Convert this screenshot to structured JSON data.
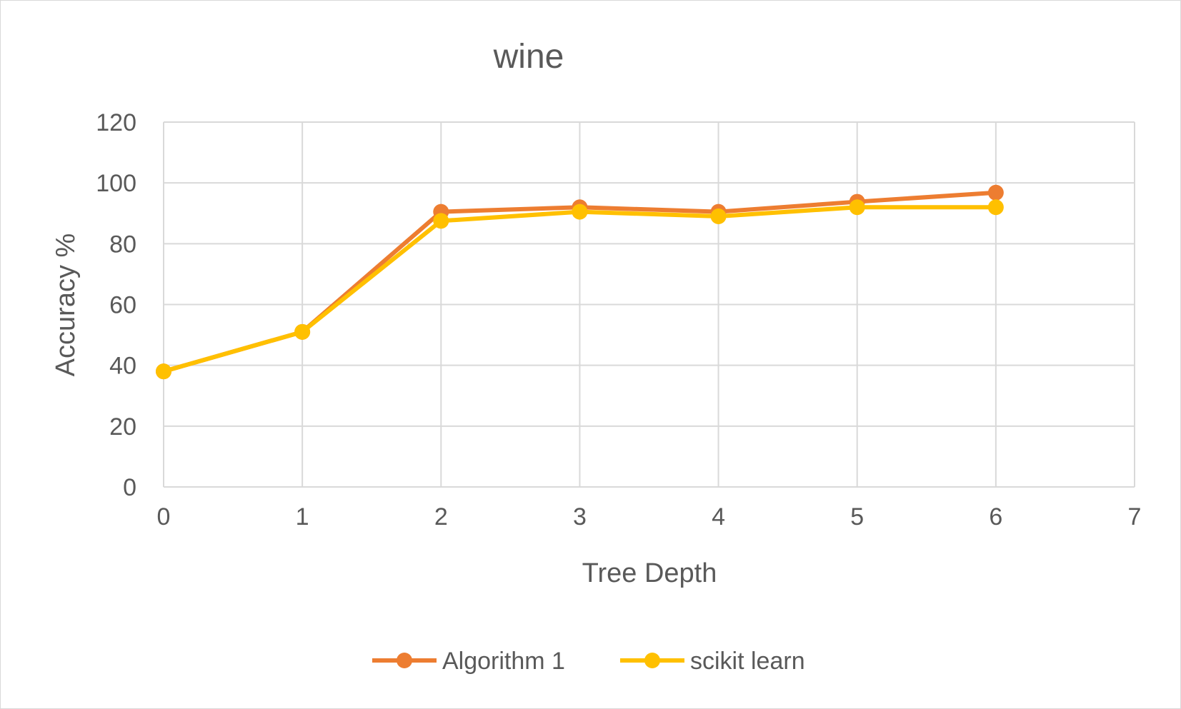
{
  "chart_data": {
    "type": "line",
    "title": "wine",
    "xlabel": "Tree Depth",
    "ylabel": "Accuracy %",
    "xlim": [
      0,
      7
    ],
    "ylim": [
      0,
      120
    ],
    "x_ticks": [
      0,
      1,
      2,
      3,
      4,
      5,
      6,
      7
    ],
    "y_ticks": [
      0,
      20,
      40,
      60,
      80,
      100,
      120
    ],
    "grid": true,
    "legend_position": "bottom",
    "x": [
      0,
      1,
      2,
      3,
      4,
      5,
      6
    ],
    "series": [
      {
        "name": "Algorithm 1",
        "color": "#ed7d31",
        "values": [
          38,
          51,
          90.5,
          92,
          90.5,
          93.8,
          96.8
        ]
      },
      {
        "name": "scikit learn",
        "color": "#ffc000",
        "values": [
          38,
          51,
          87.5,
          90.5,
          89,
          92,
          92
        ]
      }
    ]
  }
}
